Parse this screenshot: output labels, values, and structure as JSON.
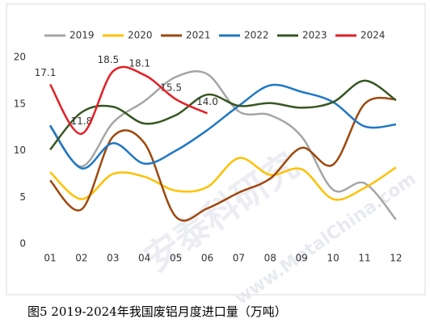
{
  "chart_data": {
    "type": "line",
    "categories": [
      "01",
      "02",
      "03",
      "04",
      "05",
      "06",
      "07",
      "08",
      "09",
      "10",
      "11",
      "12"
    ],
    "series": [
      {
        "name": "2019",
        "color": "#a5a5a5",
        "values": [
          12.6,
          8.3,
          13.0,
          15.3,
          17.9,
          18.2,
          14.2,
          13.8,
          11.5,
          5.8,
          6.5,
          2.6
        ]
      },
      {
        "name": "2020",
        "color": "#ffc000",
        "values": [
          7.7,
          4.8,
          7.5,
          7.2,
          5.7,
          6.1,
          9.2,
          7.4,
          8.0,
          4.8,
          6.0,
          8.2
        ]
      },
      {
        "name": "2021",
        "color": "#9e480e",
        "values": [
          6.8,
          3.7,
          11.5,
          10.8,
          2.9,
          3.8,
          5.5,
          7.0,
          10.3,
          8.5,
          15.0,
          15.5
        ]
      },
      {
        "name": "2022",
        "color": "#1f77c4",
        "values": [
          12.7,
          8.1,
          10.8,
          8.6,
          10.0,
          12.2,
          14.8,
          17.0,
          16.3,
          15.2,
          12.6,
          12.8
        ]
      },
      {
        "name": "2023",
        "color": "#375623",
        "values": [
          10.1,
          14.1,
          14.7,
          12.9,
          13.8,
          16.0,
          14.8,
          15.1,
          14.6,
          15.2,
          17.5,
          15.4
        ]
      },
      {
        "name": "2024",
        "color": "#e31e24",
        "values": [
          17.1,
          11.8,
          18.5,
          18.1,
          15.5,
          14.0,
          null,
          null,
          null,
          null,
          null,
          null
        ],
        "value_labels": [
          "17.1",
          "11.8",
          "18.5",
          "18.1",
          "15.5",
          "14.0",
          null,
          null,
          null,
          null,
          null,
          null
        ]
      }
    ],
    "ylim": [
      0,
      20
    ],
    "yticks": [
      0,
      5,
      10,
      15,
      20
    ],
    "grid": false,
    "legend": "top",
    "caption": "图5 2019-2024年我国废铝月度进口量（万吨）",
    "watermark": [
      "安泰科研究",
      "www.MetalChina.com"
    ]
  }
}
